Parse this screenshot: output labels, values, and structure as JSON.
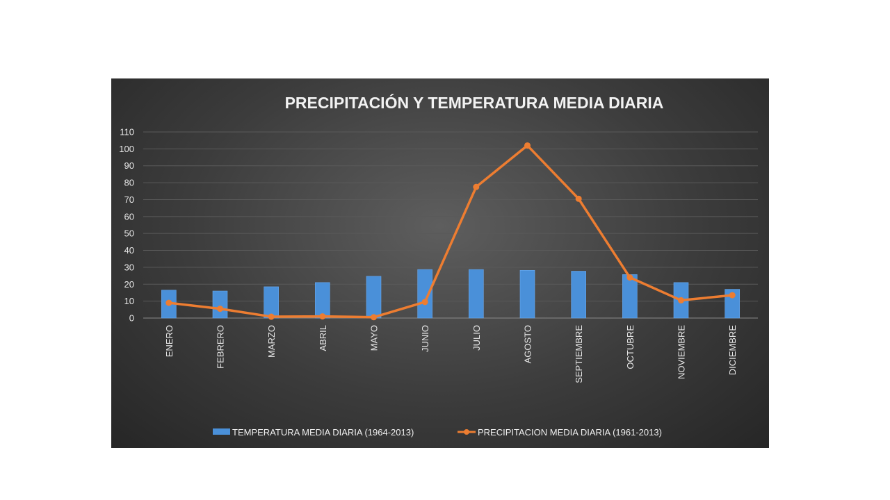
{
  "chart_data": {
    "type": "bar",
    "title": "PRECIPITACIÓN Y TEMPERATURA MEDIA DIARIA",
    "xlabel": "",
    "ylabel": "",
    "ylim": [
      0,
      110
    ],
    "yticks": [
      0,
      10,
      20,
      30,
      40,
      50,
      60,
      70,
      80,
      90,
      100,
      110
    ],
    "grid": true,
    "legend_position": "bottom",
    "categories": [
      "ENERO",
      "FEBRERO",
      "MARZO",
      "ABRIL",
      "MAYO",
      "JUNIO",
      "JULIO",
      "AGOSTO",
      "SEPTIEMBRE",
      "OCTUBRE",
      "NOVIEMBRE",
      "DICIEMBRE"
    ],
    "series": [
      {
        "name": "TEMPERATURA MEDIA DIARIA (1964-2013)",
        "type": "bar",
        "color": "#4a90d9",
        "values": [
          16.5,
          16,
          18.5,
          21,
          24.7,
          28.7,
          28.7,
          28.2,
          27.7,
          25.7,
          21,
          17
        ]
      },
      {
        "name": "PRECIPITACION MEDIA DIARIA (1961-2013)",
        "type": "line",
        "color": "#ed7d31",
        "values": [
          9,
          5.5,
          0.8,
          1,
          0.5,
          9.5,
          77.5,
          102,
          70.5,
          24,
          10.5,
          13.5
        ]
      }
    ]
  }
}
